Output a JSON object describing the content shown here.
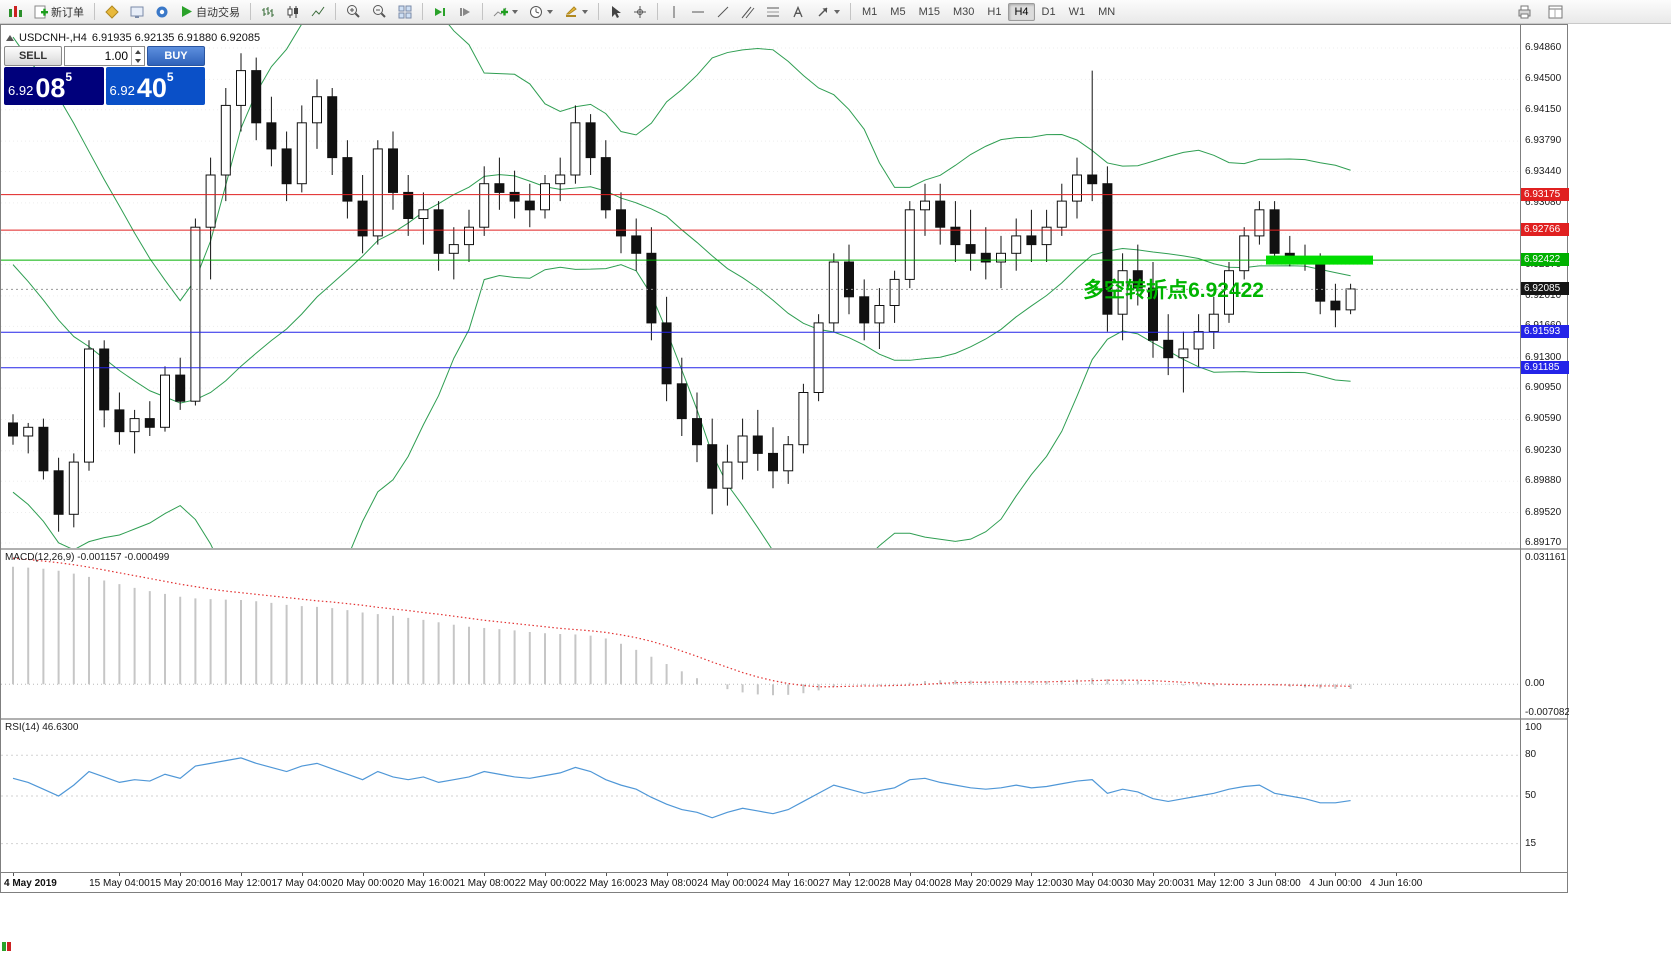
{
  "toolbar": {
    "new_order_label": "新订单",
    "autotrading_label": "自动交易",
    "timeframes": [
      "M1",
      "M5",
      "M15",
      "M30",
      "H1",
      "H4",
      "D1",
      "W1",
      "MN"
    ],
    "active_timeframe": "H4",
    "text_tool_glyph": "A"
  },
  "header": {
    "symbol": "USDCNH-,H4",
    "ohlc": "6.91935 6.92135 6.91880 6.92085"
  },
  "one_click": {
    "sell_label": "SELL",
    "buy_label": "BUY",
    "lot": "1.00",
    "sell_price_small": "6.92",
    "sell_price_big": "08",
    "sell_price_sup": "5",
    "buy_price_small": "6.92",
    "buy_price_big": "40",
    "buy_price_sup": "5"
  },
  "chart_data": {
    "type": "candlestick",
    "symbol": "USDCNH-",
    "timeframe": "H4",
    "candles": [
      [
        6.9055,
        6.9065,
        6.903,
        6.904
      ],
      [
        6.904,
        6.9055,
        6.902,
        6.905
      ],
      [
        6.905,
        6.906,
        6.899,
        6.9
      ],
      [
        6.9,
        6.9015,
        6.893,
        6.895
      ],
      [
        6.895,
        6.902,
        6.8935,
        6.901
      ],
      [
        6.901,
        6.915,
        6.9,
        6.914
      ],
      [
        6.914,
        6.915,
        6.905,
        6.907
      ],
      [
        6.907,
        6.909,
        6.903,
        6.9045
      ],
      [
        6.9045,
        6.907,
        6.902,
        6.906
      ],
      [
        6.906,
        6.908,
        6.904,
        6.905
      ],
      [
        6.905,
        6.912,
        6.9045,
        6.911
      ],
      [
        6.911,
        6.913,
        6.907,
        6.908
      ],
      [
        6.908,
        6.929,
        6.9075,
        6.928
      ],
      [
        6.928,
        6.936,
        6.922,
        6.934
      ],
      [
        6.934,
        6.944,
        6.931,
        6.942
      ],
      [
        6.942,
        6.948,
        6.939,
        6.946
      ],
      [
        6.946,
        6.9475,
        6.938,
        6.94
      ],
      [
        6.94,
        6.943,
        6.935,
        6.937
      ],
      [
        6.937,
        6.939,
        6.931,
        6.933
      ],
      [
        6.933,
        6.942,
        6.932,
        6.94
      ],
      [
        6.94,
        6.945,
        6.937,
        6.943
      ],
      [
        6.943,
        6.944,
        6.934,
        6.936
      ],
      [
        6.936,
        6.938,
        6.929,
        6.931
      ],
      [
        6.931,
        6.934,
        6.925,
        6.927
      ],
      [
        6.927,
        6.938,
        6.926,
        6.937
      ],
      [
        6.937,
        6.939,
        6.93,
        6.932
      ],
      [
        6.932,
        6.934,
        6.927,
        6.929
      ],
      [
        6.929,
        6.932,
        6.926,
        6.93
      ],
      [
        6.93,
        6.931,
        6.923,
        6.925
      ],
      [
        6.925,
        6.928,
        6.922,
        6.926
      ],
      [
        6.926,
        6.93,
        6.924,
        6.928
      ],
      [
        6.928,
        6.935,
        6.927,
        6.933
      ],
      [
        6.933,
        6.936,
        6.93,
        6.932
      ],
      [
        6.932,
        6.9345,
        6.929,
        6.931
      ],
      [
        6.931,
        6.933,
        6.928,
        6.93
      ],
      [
        6.93,
        6.934,
        6.929,
        6.933
      ],
      [
        6.933,
        6.936,
        6.931,
        6.934
      ],
      [
        6.934,
        6.942,
        6.933,
        6.94
      ],
      [
        6.94,
        6.941,
        6.934,
        6.936
      ],
      [
        6.936,
        6.938,
        6.929,
        6.93
      ],
      [
        6.93,
        6.932,
        6.925,
        6.927
      ],
      [
        6.927,
        6.929,
        6.923,
        6.925
      ],
      [
        6.925,
        6.928,
        6.915,
        6.917
      ],
      [
        6.917,
        6.92,
        6.908,
        6.91
      ],
      [
        6.91,
        6.913,
        6.904,
        6.906
      ],
      [
        6.906,
        6.909,
        6.901,
        6.903
      ],
      [
        6.903,
        6.906,
        6.895,
        6.898
      ],
      [
        6.898,
        6.903,
        6.896,
        6.901
      ],
      [
        6.901,
        6.906,
        6.899,
        6.904
      ],
      [
        6.904,
        6.907,
        6.9,
        6.902
      ],
      [
        6.902,
        6.905,
        6.898,
        6.9
      ],
      [
        6.9,
        6.904,
        6.8985,
        6.903
      ],
      [
        6.903,
        6.91,
        6.902,
        6.909
      ],
      [
        6.909,
        6.918,
        6.908,
        6.917
      ],
      [
        6.917,
        6.925,
        6.916,
        6.924
      ],
      [
        6.924,
        6.926,
        6.918,
        6.92
      ],
      [
        6.92,
        6.922,
        6.915,
        6.917
      ],
      [
        6.917,
        6.921,
        6.914,
        6.919
      ],
      [
        6.919,
        6.923,
        6.917,
        6.922
      ],
      [
        6.922,
        6.931,
        6.921,
        6.93
      ],
      [
        6.93,
        6.933,
        6.927,
        6.931
      ],
      [
        6.931,
        6.933,
        6.926,
        6.928
      ],
      [
        6.928,
        6.931,
        6.924,
        6.926
      ],
      [
        6.926,
        6.93,
        6.923,
        6.925
      ],
      [
        6.925,
        6.928,
        6.922,
        6.924
      ],
      [
        6.924,
        6.927,
        6.921,
        6.925
      ],
      [
        6.925,
        6.929,
        6.923,
        6.927
      ],
      [
        6.927,
        6.93,
        6.924,
        6.926
      ],
      [
        6.926,
        6.93,
        6.924,
        6.928
      ],
      [
        6.928,
        6.933,
        6.927,
        6.931
      ],
      [
        6.931,
        6.936,
        6.929,
        6.934
      ],
      [
        6.934,
        6.946,
        6.931,
        6.933
      ],
      [
        6.933,
        6.935,
        6.916,
        6.918
      ],
      [
        6.918,
        6.925,
        6.915,
        6.923
      ],
      [
        6.923,
        6.926,
        6.919,
        6.921
      ],
      [
        6.921,
        6.924,
        6.913,
        6.915
      ],
      [
        6.915,
        6.918,
        6.911,
        6.913
      ],
      [
        6.913,
        6.916,
        6.909,
        6.914
      ],
      [
        6.914,
        6.918,
        6.912,
        6.916
      ],
      [
        6.916,
        6.92,
        6.914,
        6.918
      ],
      [
        6.918,
        6.924,
        6.917,
        6.923
      ],
      [
        6.923,
        6.928,
        6.922,
        6.927
      ],
      [
        6.927,
        6.931,
        6.926,
        6.93
      ],
      [
        6.93,
        6.931,
        6.924,
        6.925
      ],
      [
        6.925,
        6.927,
        6.9235,
        6.9245
      ],
      [
        6.9245,
        6.926,
        6.923,
        6.924
      ],
      [
        6.924,
        6.925,
        6.918,
        6.9195
      ],
      [
        6.9195,
        6.9215,
        6.9165,
        6.9185
      ],
      [
        6.9185,
        6.9215,
        6.918,
        6.9209
      ]
    ],
    "y_axis": {
      "ticks": [
        "6.94860",
        "6.94500",
        "6.94150",
        "6.93790",
        "6.93440",
        "6.93080",
        "6.92730",
        "6.92370",
        "6.92010",
        "6.91660",
        "6.91300",
        "6.90950",
        "6.90590",
        "6.90230",
        "6.89880",
        "6.89520",
        "6.89170"
      ],
      "top": 6.9486,
      "bottom": 6.8917
    },
    "x_axis": {
      "labels": [
        "4 May 2019",
        "15 May 04:00",
        "15 May 20:00",
        "16 May 12:00",
        "17 May 04:00",
        "20 May 00:00",
        "20 May 16:00",
        "21 May 08:00",
        "22 May 00:00",
        "22 May 16:00",
        "23 May 08:00",
        "24 May 00:00",
        "24 May 16:00",
        "27 May 12:00",
        "28 May 04:00",
        "28 May 20:00",
        "29 May 12:00",
        "30 May 04:00",
        "30 May 20:00",
        "31 May 12:00",
        "3 Jun 08:00",
        "4 Jun 00:00",
        "4 Jun 16:00"
      ]
    },
    "levels": [
      {
        "price": 6.93175,
        "label": "6.93175",
        "line": "#e02020",
        "badge": "#e02020"
      },
      {
        "price": 6.92766,
        "label": "6.92766",
        "line": "#e02020",
        "badge": "#e02020"
      },
      {
        "price": 6.92422,
        "label": "6.92422",
        "line": "#00b000",
        "badge": "#00b000"
      },
      {
        "price": 6.92085,
        "label": "6.92085",
        "line": "#9a9a9a",
        "badge": "#151515",
        "dash": "2,3"
      },
      {
        "price": 6.91593,
        "label": "6.91593",
        "line": "#2424e8",
        "badge": "#2424e8"
      },
      {
        "price": 6.91185,
        "label": "6.91185",
        "line": "#2424e8",
        "badge": "#2424e8"
      }
    ],
    "annotation": {
      "text": "多空转折点6.92422",
      "color": "#00b400"
    },
    "highlight": {
      "price": 6.92422,
      "color": "#00dd00",
      "thickness": 9
    },
    "bollinger": {
      "period": 20,
      "deviation": 2,
      "color": "#2f9e52",
      "seed_closes": [
        6.945,
        6.944,
        6.9425,
        6.941,
        6.939,
        6.937,
        6.9345,
        6.932,
        6.93,
        6.9275,
        6.925,
        6.9225,
        6.92,
        6.9175,
        6.915,
        6.9125,
        6.91,
        6.908,
        6.9065,
        6.9055
      ]
    },
    "macd": {
      "label": "MACD(12,26,9)",
      "values": "-0.001157 -0.000499",
      "scale": [
        "0.031161",
        "0.00",
        "-0.007082"
      ],
      "max": 0.031161,
      "min": -0.007082,
      "bar_color": "#c6c6c6",
      "signal_color": "#e23030",
      "histogram": [
        0.029,
        0.0288,
        0.0285,
        0.028,
        0.0273,
        0.0265,
        0.0256,
        0.0247,
        0.0238,
        0.023,
        0.0223,
        0.0216,
        0.0212,
        0.021,
        0.0209,
        0.0208,
        0.0205,
        0.0201,
        0.0196,
        0.0193,
        0.0191,
        0.0188,
        0.0183,
        0.0177,
        0.0173,
        0.0169,
        0.0164,
        0.0159,
        0.0153,
        0.0147,
        0.0142,
        0.0139,
        0.0136,
        0.0133,
        0.0129,
        0.0126,
        0.0124,
        0.0123,
        0.012,
        0.0113,
        0.01,
        0.0085,
        0.0068,
        0.005,
        0.0032,
        0.0015,
        0.0,
        -0.0012,
        -0.002,
        -0.0025,
        -0.0027,
        -0.0026,
        -0.0022,
        -0.0015,
        -0.0006,
        0.0,
        -0.0002,
        -0.0003,
        -0.0001,
        0.0004,
        0.0008,
        0.001,
        0.001,
        0.0009,
        0.0008,
        0.0007,
        0.0007,
        0.0007,
        0.0008,
        0.001,
        0.0012,
        0.0015,
        0.0013,
        0.001,
        0.0008,
        0.0005,
        0.0001,
        -0.0003,
        -0.0005,
        -0.0005,
        -0.0003,
        -0.0001,
        0.0,
        -0.0003,
        -0.0006,
        -0.0008,
        -0.001,
        -0.0011,
        -0.001157
      ],
      "signal": [
        0.0311,
        0.0308,
        0.0304,
        0.03,
        0.0295,
        0.0289,
        0.0282,
        0.0275,
        0.0268,
        0.0261,
        0.0254,
        0.0247,
        0.0241,
        0.0235,
        0.023,
        0.0226,
        0.0222,
        0.0218,
        0.0214,
        0.021,
        0.0206,
        0.0203,
        0.0199,
        0.0195,
        0.019,
        0.0186,
        0.0182,
        0.0177,
        0.0173,
        0.0168,
        0.0163,
        0.0158,
        0.0154,
        0.015,
        0.0146,
        0.0142,
        0.0138,
        0.0135,
        0.0132,
        0.0128,
        0.0122,
        0.0115,
        0.0106,
        0.0095,
        0.0082,
        0.0069,
        0.0055,
        0.0042,
        0.0029,
        0.0018,
        0.0009,
        0.0002,
        -0.0003,
        -0.0006,
        -0.0006,
        -0.0005,
        -0.0004,
        -0.0004,
        -0.0003,
        -0.0002,
        0.0,
        0.0002,
        0.0004,
        0.0005,
        0.0005,
        0.0006,
        0.0006,
        0.0006,
        0.0006,
        0.0007,
        0.0008,
        0.0009,
        0.001,
        0.001,
        0.001,
        0.0009,
        0.0007,
        0.0005,
        0.0003,
        0.0001,
        0.0,
        -0.0001,
        -0.0001,
        -0.0001,
        -0.0002,
        -0.0003,
        -0.0004,
        -0.0004,
        -0.000499
      ]
    },
    "rsi": {
      "label": "RSI(14)",
      "value": "46.6300",
      "color": "#4f97d7",
      "scale": [
        {
          "v": 100,
          "t": "100"
        },
        {
          "v": 80,
          "t": "80"
        },
        {
          "v": 50,
          "t": "50"
        },
        {
          "v": 15,
          "t": "15"
        }
      ],
      "levels": [
        80,
        50,
        15
      ],
      "values": [
        63,
        60,
        55,
        50,
        58,
        68,
        64,
        60,
        62,
        61,
        66,
        63,
        72,
        74,
        76,
        78,
        74,
        71,
        68,
        72,
        74,
        70,
        66,
        62,
        68,
        64,
        62,
        64,
        60,
        62,
        64,
        68,
        66,
        64,
        63,
        65,
        67,
        71,
        68,
        62,
        58,
        55,
        49,
        44,
        40,
        38,
        34,
        38,
        41,
        39,
        37,
        40,
        46,
        52,
        58,
        55,
        52,
        54,
        56,
        62,
        63,
        60,
        58,
        56,
        55,
        56,
        58,
        56,
        57,
        59,
        61,
        62,
        52,
        55,
        53,
        48,
        46,
        48,
        50,
        52,
        55,
        57,
        58,
        52,
        50,
        48,
        45,
        45,
        46.63
      ]
    }
  }
}
